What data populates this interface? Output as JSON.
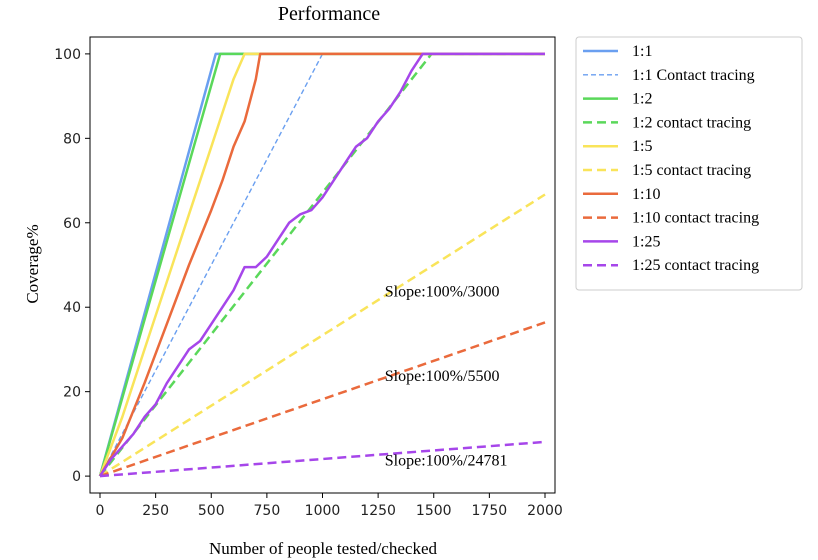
{
  "chart_data": {
    "type": "line",
    "title": "Performance",
    "xlabel": "Number of people tested/checked",
    "ylabel": "Coverage%",
    "xlim": [
      -45,
      2045
    ],
    "ylim": [
      -4,
      104
    ],
    "xticks": [
      0,
      250,
      500,
      750,
      1000,
      1250,
      1500,
      1750,
      2000
    ],
    "yticks": [
      0,
      20,
      40,
      60,
      80,
      100
    ],
    "grid": false,
    "legend_position": "outside-right",
    "series": [
      {
        "name": "1:1",
        "color": "#6a9ff0",
        "style": "solid",
        "width": 2.5,
        "x": [
          0,
          520,
          2000
        ],
        "y": [
          0,
          100,
          100
        ]
      },
      {
        "name": "1:1 Contact tracing",
        "color": "#6a9ff0",
        "style": "dashed-fine",
        "width": 1.4,
        "x": [
          0,
          1000
        ],
        "y": [
          0,
          100
        ]
      },
      {
        "name": "1:2",
        "color": "#5ad85a",
        "style": "solid",
        "width": 2.5,
        "x": [
          0,
          540,
          2000
        ],
        "y": [
          0,
          100,
          100
        ]
      },
      {
        "name": "1:2 contact tracing",
        "color": "#5ad85a",
        "style": "dashed",
        "width": 2.5,
        "x": [
          0,
          1490,
          2000
        ],
        "y": [
          0,
          100,
          100
        ]
      },
      {
        "name": "1:5",
        "color": "#f9e45a",
        "style": "solid",
        "width": 2.5,
        "x": [
          0,
          100,
          200,
          300,
          400,
          500,
          600,
          650,
          2000
        ],
        "y": [
          0,
          14,
          30,
          46,
          62,
          78,
          94,
          100,
          100
        ]
      },
      {
        "name": "1:5 contact tracing",
        "color": "#f9e45a",
        "style": "dashed",
        "width": 2.5,
        "x": [
          0,
          2000
        ],
        "y": [
          0,
          66.7
        ]
      },
      {
        "name": "1:10",
        "color": "#ea6a3c",
        "style": "solid",
        "width": 2.5,
        "x": [
          0,
          100,
          200,
          300,
          400,
          500,
          550,
          600,
          650,
          700,
          720,
          2000
        ],
        "y": [
          0,
          9,
          22,
          36,
          50,
          63,
          70,
          78,
          84,
          94,
          100,
          100
        ]
      },
      {
        "name": "1:10 contact tracing",
        "color": "#ea6a3c",
        "style": "dashed",
        "width": 2.5,
        "x": [
          0,
          2000
        ],
        "y": [
          0,
          36.4
        ]
      },
      {
        "name": "1:25",
        "color": "#a646ea",
        "style": "solid",
        "width": 2.5,
        "x": [
          0,
          50,
          100,
          150,
          200,
          250,
          300,
          350,
          400,
          450,
          500,
          550,
          600,
          650,
          700,
          750,
          800,
          850,
          900,
          950,
          1000,
          1050,
          1100,
          1150,
          1200,
          1250,
          1300,
          1350,
          1400,
          1450,
          1500,
          2000
        ],
        "y": [
          0,
          4,
          7,
          10,
          14,
          17,
          22,
          26,
          30,
          32,
          36,
          40,
          44,
          49.5,
          49.5,
          52,
          56,
          60,
          62,
          63,
          66,
          70,
          74,
          78,
          80,
          84,
          87,
          91,
          96,
          100,
          100,
          100
        ]
      },
      {
        "name": "1:25 contact tracing",
        "color": "#a646ea",
        "style": "dashed",
        "width": 2.5,
        "x": [
          0,
          2000
        ],
        "y": [
          0,
          8.1
        ]
      }
    ],
    "annotations": [
      {
        "text": "Slope:100%/3000",
        "x": 1280,
        "y": 42.5
      },
      {
        "text": "Slope:100%/5500",
        "x": 1280,
        "y": 22.5
      },
      {
        "text": "Slope:100%/24781",
        "x": 1280,
        "y": 2.5
      }
    ]
  }
}
